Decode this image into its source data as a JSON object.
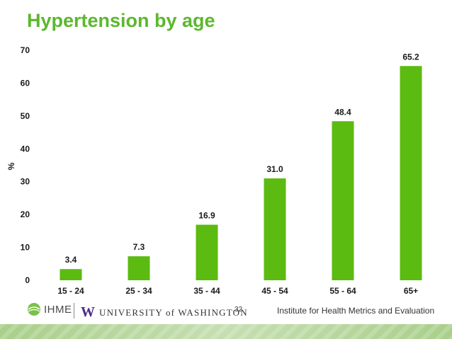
{
  "title": "Hypertension by age",
  "chart_data": {
    "type": "bar",
    "categories": [
      "15 - 24",
      "25 - 34",
      "35 - 44",
      "45 - 54",
      "55 - 64",
      "65+"
    ],
    "values": [
      3.4,
      7.3,
      16.9,
      31.0,
      48.4,
      65.2
    ],
    "data_labels": [
      "3.4",
      "7.3",
      "16.9",
      "31.0",
      "48.4",
      "65.2"
    ],
    "ylabel": "%",
    "ylim": [
      0,
      70
    ],
    "yticks": [
      0,
      10,
      20,
      30,
      40,
      50,
      60,
      70
    ],
    "grid": false,
    "bar_color": "#5cbb10"
  },
  "footer": {
    "ihme_logo": "IHME",
    "uw_logo_letter": "W",
    "uw_logo": "UNIVERSITY of WASHINGTON",
    "page_number": "32",
    "institute": "Institute for Health Metrics and Evaluation"
  },
  "colors": {
    "title": "#5cb82e",
    "bars": "#5cbb10",
    "band": "#b8d89c"
  }
}
